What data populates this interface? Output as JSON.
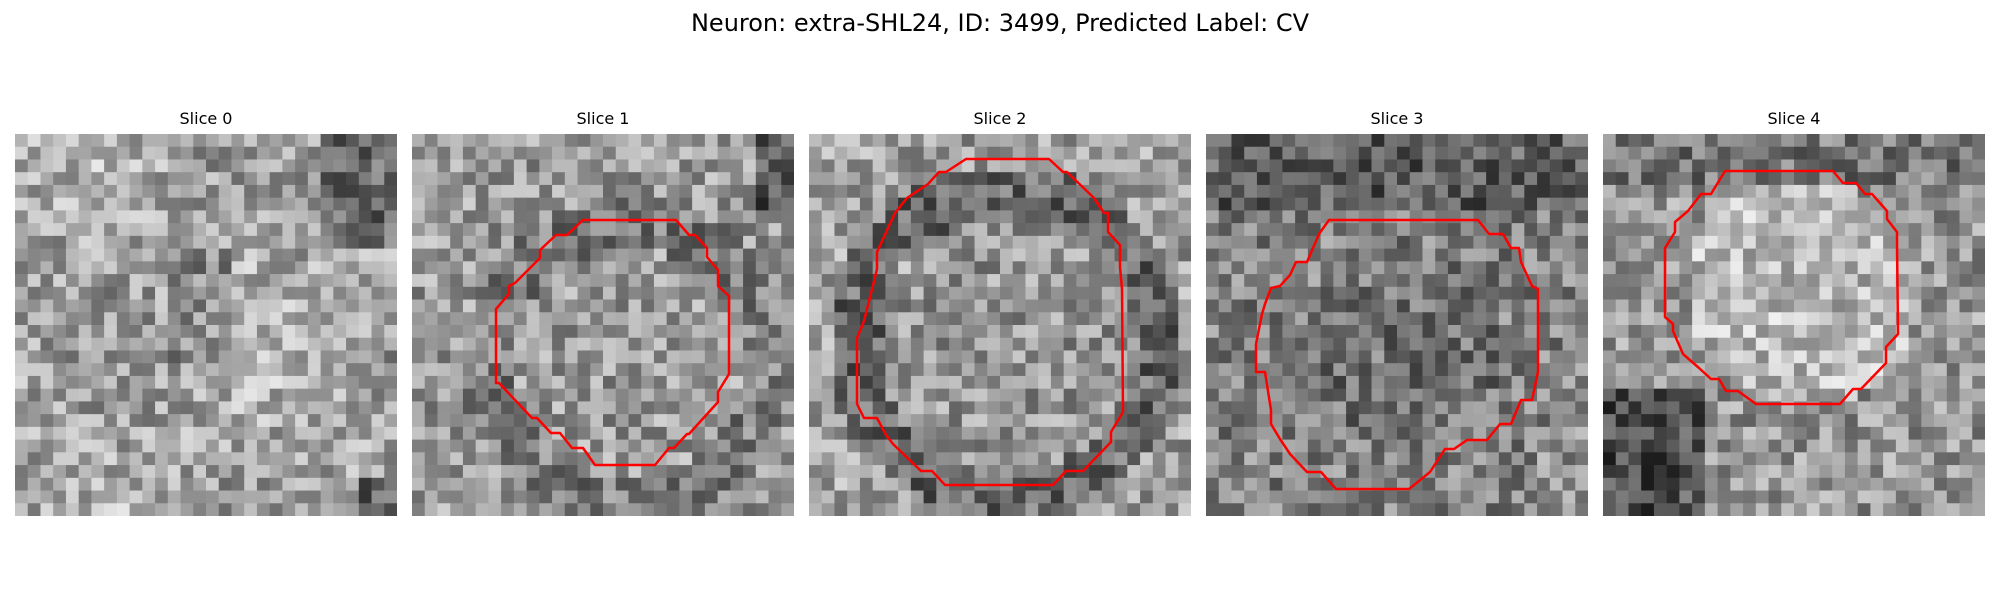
{
  "figure": {
    "title": "Neuron: extra-SHL24, ID: 3499, Predicted Label: CV"
  },
  "panels": [
    {
      "title": "Slice 0",
      "contour": false
    },
    {
      "title": "Slice 1",
      "contour": true
    },
    {
      "title": "Slice 2",
      "contour": true
    },
    {
      "title": "Slice 3",
      "contour": true
    },
    {
      "title": "Slice 4",
      "contour": true
    }
  ],
  "colors": {
    "contour": "#ff0000",
    "background": "#ffffff"
  }
}
